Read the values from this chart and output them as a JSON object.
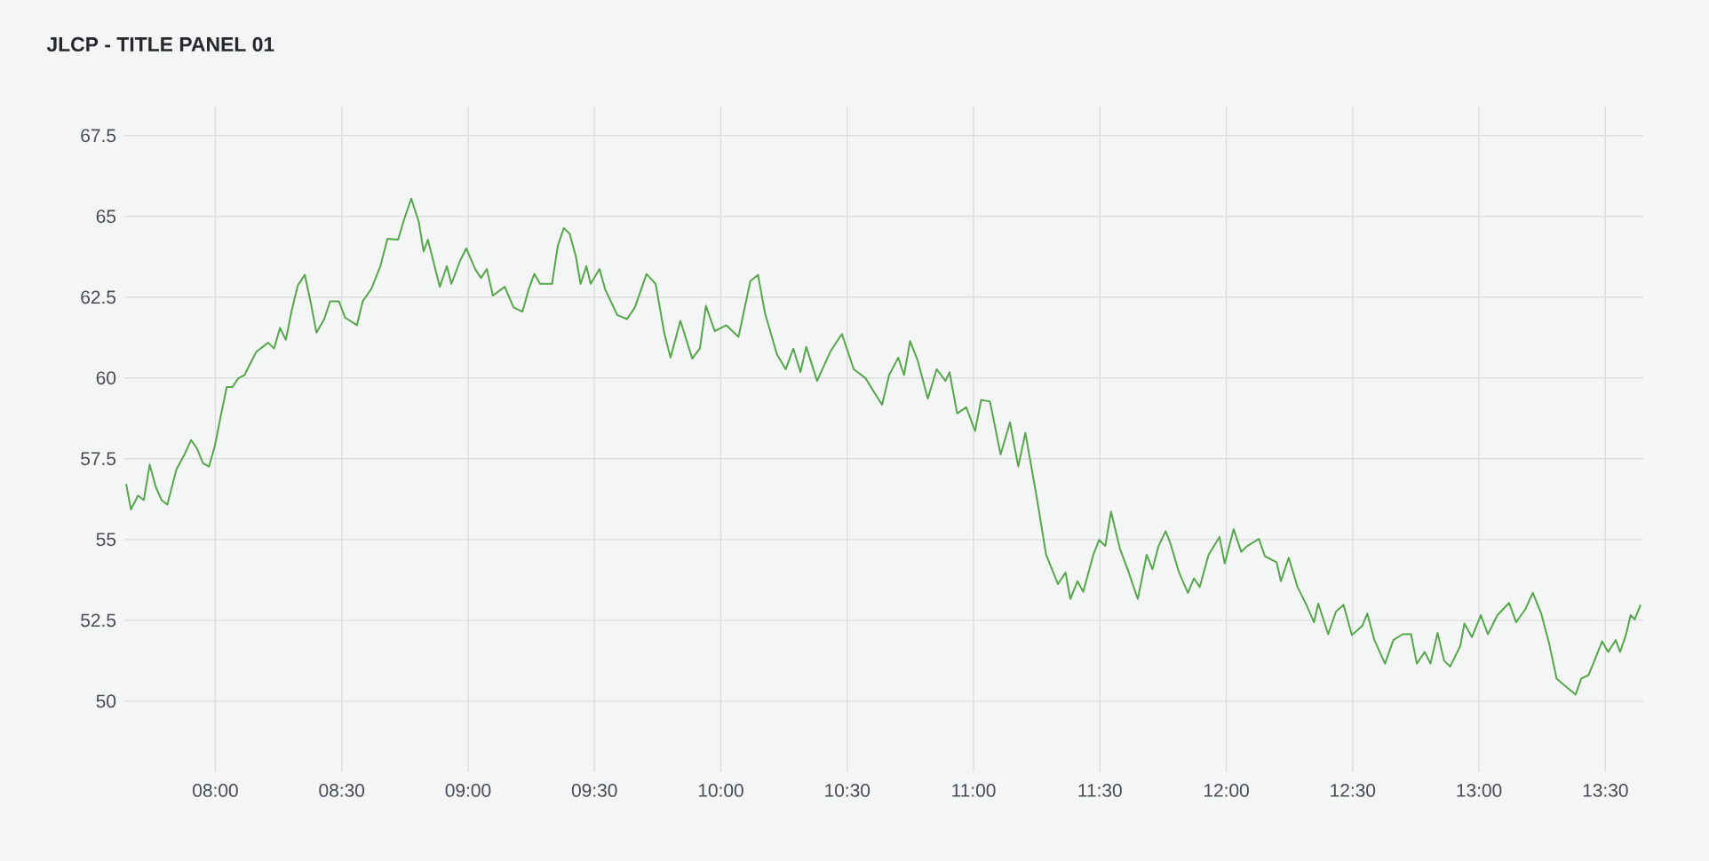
{
  "chart_data": {
    "type": "line",
    "title": "JLCP - TITLE PANEL 01",
    "color": "#56a64b",
    "grid": true,
    "xlim": [
      7.64,
      13.65
    ],
    "ylim": [
      47.8,
      68.4
    ],
    "xticks": [
      {
        "value": 8,
        "label": "08:00"
      },
      {
        "value": 8.5,
        "label": "08:30"
      },
      {
        "value": 9,
        "label": "09:00"
      },
      {
        "value": 9.5,
        "label": "09:30"
      },
      {
        "value": 10,
        "label": "10:00"
      },
      {
        "value": 10.5,
        "label": "10:30"
      },
      {
        "value": 11,
        "label": "11:00"
      },
      {
        "value": 11.5,
        "label": "11:30"
      },
      {
        "value": 12,
        "label": "12:00"
      },
      {
        "value": 12.5,
        "label": "12:30"
      },
      {
        "value": 13,
        "label": "13:00"
      },
      {
        "value": 13.5,
        "label": "13:30"
      }
    ],
    "yticks": [
      50,
      52.5,
      55,
      57.5,
      60,
      62.5,
      65,
      67.5
    ],
    "x": [
      7.647,
      7.666,
      7.694,
      7.717,
      7.74,
      7.764,
      7.787,
      7.81,
      7.846,
      7.881,
      7.904,
      7.928,
      7.951,
      7.975,
      7.998,
      8.021,
      8.045,
      8.068,
      8.091,
      8.115,
      8.162,
      8.209,
      8.232,
      8.256,
      8.279,
      8.302,
      8.326,
      8.354,
      8.379,
      8.4,
      8.431,
      8.454,
      8.489,
      8.513,
      8.56,
      8.583,
      8.618,
      8.653,
      8.681,
      8.723,
      8.747,
      8.775,
      8.805,
      8.824,
      8.841,
      8.888,
      8.916,
      8.934,
      8.969,
      8.993,
      9.028,
      9.051,
      9.074,
      9.098,
      9.145,
      9.18,
      9.215,
      9.239,
      9.262,
      9.285,
      9.332,
      9.355,
      9.379,
      9.402,
      9.426,
      9.445,
      9.468,
      9.485,
      9.52,
      9.543,
      9.59,
      9.629,
      9.66,
      9.706,
      9.742,
      9.777,
      9.801,
      9.84,
      9.887,
      9.917,
      9.941,
      9.976,
      10.022,
      10.07,
      10.117,
      10.147,
      10.175,
      10.222,
      10.257,
      10.287,
      10.315,
      10.338,
      10.381,
      10.433,
      10.479,
      10.526,
      10.573,
      10.608,
      10.638,
      10.666,
      10.702,
      10.725,
      10.749,
      10.779,
      10.819,
      10.854,
      10.889,
      10.905,
      10.935,
      10.971,
      11.006,
      11.03,
      11.065,
      11.107,
      11.144,
      11.177,
      11.205,
      11.251,
      11.287,
      11.334,
      11.364,
      11.383,
      11.411,
      11.434,
      11.474,
      11.497,
      11.521,
      11.544,
      11.579,
      11.614,
      11.65,
      11.685,
      11.708,
      11.732,
      11.76,
      11.778,
      11.813,
      11.848,
      11.872,
      11.895,
      11.93,
      11.973,
      11.994,
      12.029,
      12.059,
      12.083,
      12.129,
      12.153,
      12.199,
      12.216,
      12.247,
      12.282,
      12.317,
      12.347,
      12.364,
      12.403,
      12.434,
      12.464,
      12.497,
      12.539,
      12.558,
      12.586,
      12.628,
      12.661,
      12.698,
      12.731,
      12.754,
      12.785,
      12.808,
      12.836,
      12.862,
      12.886,
      12.926,
      12.942,
      12.972,
      13.007,
      13.035,
      13.073,
      13.119,
      13.147,
      13.183,
      13.213,
      13.246,
      13.277,
      13.307,
      13.347,
      13.382,
      13.405,
      13.433,
      13.452,
      13.487,
      13.511,
      13.541,
      13.558,
      13.581,
      13.6,
      13.616,
      13.639
    ],
    "values": [
      56.72,
      55.93,
      56.36,
      56.22,
      57.32,
      56.63,
      56.22,
      56.08,
      57.17,
      57.68,
      58.08,
      57.81,
      57.36,
      57.26,
      57.9,
      58.81,
      59.72,
      59.72,
      59.99,
      60.09,
      60.81,
      61.09,
      60.91,
      61.55,
      61.18,
      62.09,
      62.86,
      63.19,
      62.27,
      61.4,
      61.82,
      62.37,
      62.37,
      61.87,
      61.63,
      62.37,
      62.77,
      63.46,
      64.31,
      64.28,
      64.91,
      65.55,
      64.83,
      63.91,
      64.28,
      62.82,
      63.46,
      62.91,
      63.64,
      64.01,
      63.37,
      63.09,
      63.37,
      62.55,
      62.82,
      62.18,
      62.05,
      62.73,
      63.22,
      62.91,
      62.91,
      64.09,
      64.64,
      64.46,
      63.77,
      62.91,
      63.46,
      62.91,
      63.37,
      62.73,
      61.95,
      61.82,
      62.18,
      63.22,
      62.91,
      61.36,
      60.63,
      61.77,
      60.6,
      60.91,
      62.23,
      61.45,
      61.63,
      61.27,
      63.0,
      63.19,
      62.0,
      60.73,
      60.27,
      60.91,
      60.18,
      60.96,
      59.91,
      60.81,
      61.36,
      60.27,
      59.99,
      59.54,
      59.17,
      60.09,
      60.63,
      60.09,
      61.14,
      60.54,
      59.36,
      60.27,
      59.91,
      60.18,
      58.9,
      59.09,
      58.36,
      59.32,
      59.27,
      57.63,
      58.63,
      57.26,
      58.3,
      56.26,
      54.53,
      53.62,
      53.98,
      53.16,
      53.71,
      53.38,
      54.53,
      54.99,
      54.8,
      55.86,
      54.72,
      53.98,
      53.16,
      54.53,
      54.08,
      54.8,
      55.26,
      54.9,
      53.98,
      53.35,
      53.8,
      53.53,
      54.53,
      55.08,
      54.26,
      55.32,
      54.62,
      54.8,
      55.02,
      54.48,
      54.3,
      53.71,
      54.44,
      53.53,
      52.98,
      52.44,
      53.02,
      52.07,
      52.77,
      52.98,
      52.04,
      52.34,
      52.71,
      51.89,
      51.16,
      51.89,
      52.07,
      52.07,
      51.16,
      51.52,
      51.16,
      52.11,
      51.25,
      51.07,
      51.71,
      52.4,
      51.98,
      52.66,
      52.07,
      52.66,
      53.04,
      52.44,
      52.84,
      53.35,
      52.71,
      51.8,
      50.7,
      50.43,
      50.2,
      50.7,
      50.8,
      51.16,
      51.85,
      51.52,
      51.89,
      51.52,
      52.04,
      52.66,
      52.53,
      52.98
    ]
  }
}
